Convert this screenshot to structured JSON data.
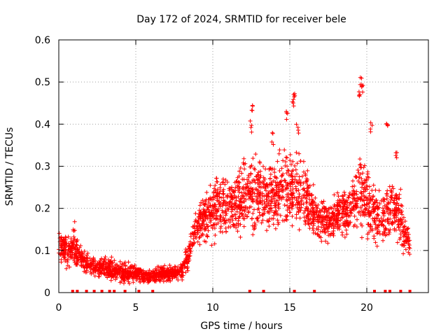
{
  "chart_data": {
    "type": "scatter",
    "title": "Day 172 of 2024, SRMTID for receiver bele",
    "xlabel": "GPS time / hours",
    "ylabel": "SRMTID / TECUs",
    "xlim": [
      0,
      24
    ],
    "ylim": [
      0,
      0.6
    ],
    "xticks": [
      0,
      5,
      10,
      15,
      20
    ],
    "xtick_labels": [
      "0",
      "5",
      "10",
      "15",
      "20"
    ],
    "yticks": [
      0,
      0.1,
      0.2,
      0.3,
      0.4,
      0.5,
      0.6
    ],
    "ytick_labels": [
      "0",
      "0.1",
      "0.2",
      "0.3",
      "0.4",
      "0.5",
      "0.6"
    ],
    "grid": true,
    "marker": "plus",
    "color": "#ff0000",
    "series": [
      {
        "name": "SRMTID",
        "envelope": [
          [
            0.0,
            0.11,
            0.03
          ],
          [
            0.5,
            0.1,
            0.03
          ],
          [
            1.0,
            0.1,
            0.03
          ],
          [
            1.5,
            0.08,
            0.025
          ],
          [
            2.0,
            0.065,
            0.02
          ],
          [
            2.5,
            0.055,
            0.02
          ],
          [
            3.0,
            0.06,
            0.02
          ],
          [
            3.5,
            0.055,
            0.02
          ],
          [
            4.0,
            0.05,
            0.02
          ],
          [
            4.5,
            0.045,
            0.02
          ],
          [
            5.0,
            0.045,
            0.015
          ],
          [
            5.5,
            0.04,
            0.015
          ],
          [
            6.0,
            0.04,
            0.015
          ],
          [
            6.5,
            0.045,
            0.015
          ],
          [
            7.0,
            0.045,
            0.015
          ],
          [
            7.5,
            0.045,
            0.015
          ],
          [
            8.0,
            0.05,
            0.015
          ],
          [
            8.5,
            0.1,
            0.03
          ],
          [
            9.0,
            0.16,
            0.04
          ],
          [
            9.5,
            0.18,
            0.05
          ],
          [
            10.0,
            0.19,
            0.06
          ],
          [
            10.5,
            0.21,
            0.06
          ],
          [
            11.0,
            0.2,
            0.06
          ],
          [
            11.5,
            0.21,
            0.06
          ],
          [
            12.0,
            0.22,
            0.07
          ],
          [
            12.5,
            0.24,
            0.07
          ],
          [
            13.0,
            0.24,
            0.08
          ],
          [
            13.5,
            0.22,
            0.07
          ],
          [
            14.0,
            0.23,
            0.07
          ],
          [
            14.5,
            0.24,
            0.07
          ],
          [
            15.0,
            0.25,
            0.08
          ],
          [
            15.5,
            0.24,
            0.08
          ],
          [
            16.0,
            0.22,
            0.07
          ],
          [
            16.5,
            0.19,
            0.05
          ],
          [
            17.0,
            0.17,
            0.04
          ],
          [
            17.5,
            0.17,
            0.04
          ],
          [
            18.0,
            0.19,
            0.04
          ],
          [
            18.5,
            0.19,
            0.05
          ],
          [
            19.0,
            0.19,
            0.05
          ],
          [
            19.5,
            0.25,
            0.08
          ],
          [
            20.0,
            0.22,
            0.08
          ],
          [
            20.5,
            0.18,
            0.06
          ],
          [
            21.0,
            0.17,
            0.05
          ],
          [
            21.5,
            0.18,
            0.06
          ],
          [
            22.0,
            0.2,
            0.07
          ],
          [
            22.5,
            0.13,
            0.04
          ],
          [
            22.8,
            0.12,
            0.03
          ]
        ],
        "spikes": [
          [
            1.0,
            0.17
          ],
          [
            12.6,
            0.45
          ],
          [
            12.5,
            0.41
          ],
          [
            13.9,
            0.38
          ],
          [
            14.8,
            0.44
          ],
          [
            15.3,
            0.48
          ],
          [
            15.2,
            0.46
          ],
          [
            15.5,
            0.4
          ],
          [
            19.6,
            0.52
          ],
          [
            19.7,
            0.5
          ],
          [
            19.5,
            0.48
          ],
          [
            20.3,
            0.41
          ],
          [
            21.3,
            0.42
          ],
          [
            21.9,
            0.35
          ],
          [
            12.0,
            0.32
          ]
        ],
        "zero_markers_x": [
          0.9,
          1.2,
          1.8,
          2.3,
          2.8,
          3.3,
          3.6,
          4.3,
          5.2,
          6.1,
          12.4,
          13.3,
          15.3,
          16.6,
          20.5,
          21.2,
          21.5,
          22.2,
          22.8
        ]
      }
    ]
  }
}
